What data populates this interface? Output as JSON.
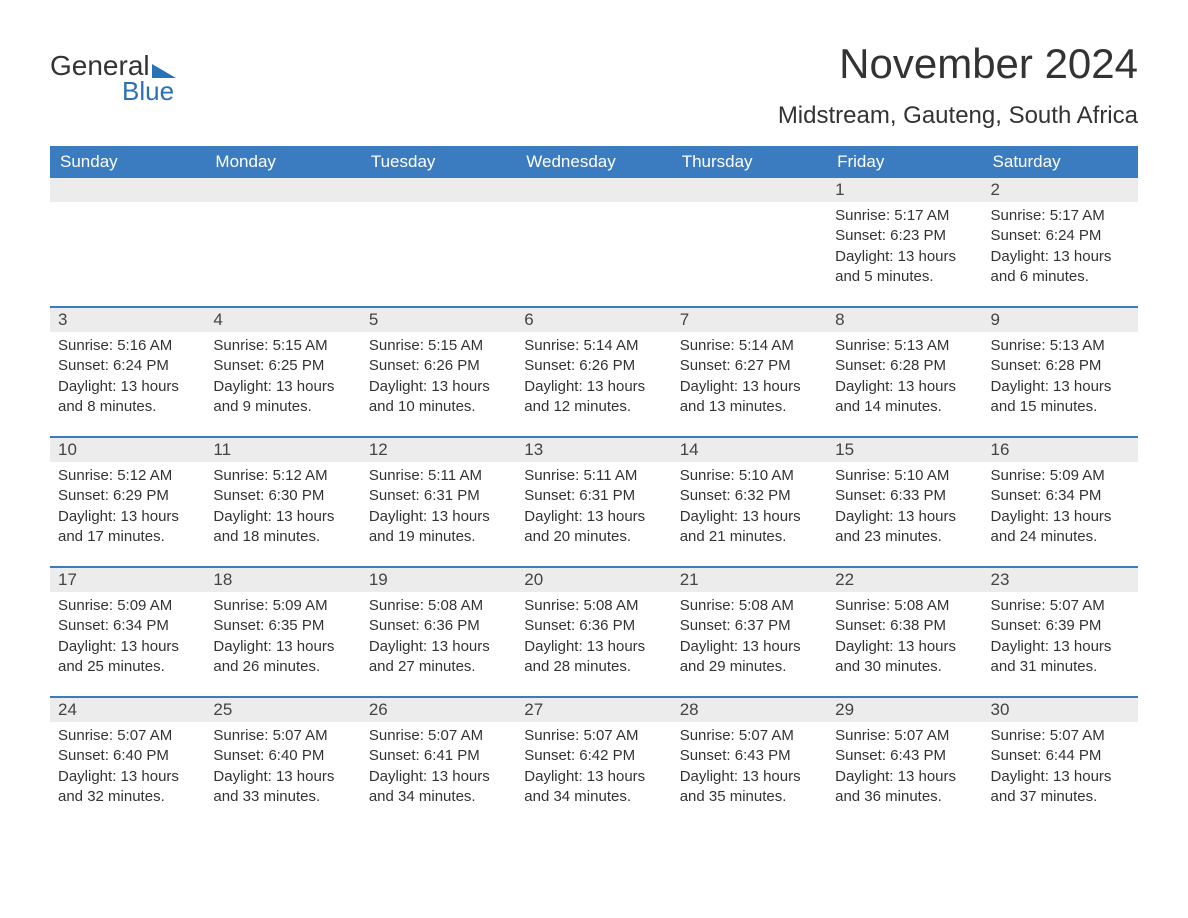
{
  "logo": {
    "text1": "General",
    "text2": "Blue"
  },
  "title": "November 2024",
  "location": "Midstream, Gauteng, South Africa",
  "colors": {
    "header_bg": "#3b7bbf",
    "header_text": "#ffffff",
    "daynum_bg": "#ececec",
    "row_border": "#3b7bbf",
    "logo_accent": "#2a72b5",
    "body_text": "#333333",
    "background": "#ffffff"
  },
  "typography": {
    "title_fontsize": 42,
    "location_fontsize": 24,
    "dayheader_fontsize": 17,
    "daynum_fontsize": 17,
    "body_fontsize": 15,
    "font_family": "Arial"
  },
  "calendar": {
    "type": "table",
    "columns": [
      "Sunday",
      "Monday",
      "Tuesday",
      "Wednesday",
      "Thursday",
      "Friday",
      "Saturday"
    ],
    "weeks": [
      [
        {
          "day": "",
          "sunrise": "",
          "sunset": "",
          "daylight": ""
        },
        {
          "day": "",
          "sunrise": "",
          "sunset": "",
          "daylight": ""
        },
        {
          "day": "",
          "sunrise": "",
          "sunset": "",
          "daylight": ""
        },
        {
          "day": "",
          "sunrise": "",
          "sunset": "",
          "daylight": ""
        },
        {
          "day": "",
          "sunrise": "",
          "sunset": "",
          "daylight": ""
        },
        {
          "day": "1",
          "sunrise": "Sunrise: 5:17 AM",
          "sunset": "Sunset: 6:23 PM",
          "daylight": "Daylight: 13 hours and 5 minutes."
        },
        {
          "day": "2",
          "sunrise": "Sunrise: 5:17 AM",
          "sunset": "Sunset: 6:24 PM",
          "daylight": "Daylight: 13 hours and 6 minutes."
        }
      ],
      [
        {
          "day": "3",
          "sunrise": "Sunrise: 5:16 AM",
          "sunset": "Sunset: 6:24 PM",
          "daylight": "Daylight: 13 hours and 8 minutes."
        },
        {
          "day": "4",
          "sunrise": "Sunrise: 5:15 AM",
          "sunset": "Sunset: 6:25 PM",
          "daylight": "Daylight: 13 hours and 9 minutes."
        },
        {
          "day": "5",
          "sunrise": "Sunrise: 5:15 AM",
          "sunset": "Sunset: 6:26 PM",
          "daylight": "Daylight: 13 hours and 10 minutes."
        },
        {
          "day": "6",
          "sunrise": "Sunrise: 5:14 AM",
          "sunset": "Sunset: 6:26 PM",
          "daylight": "Daylight: 13 hours and 12 minutes."
        },
        {
          "day": "7",
          "sunrise": "Sunrise: 5:14 AM",
          "sunset": "Sunset: 6:27 PM",
          "daylight": "Daylight: 13 hours and 13 minutes."
        },
        {
          "day": "8",
          "sunrise": "Sunrise: 5:13 AM",
          "sunset": "Sunset: 6:28 PM",
          "daylight": "Daylight: 13 hours and 14 minutes."
        },
        {
          "day": "9",
          "sunrise": "Sunrise: 5:13 AM",
          "sunset": "Sunset: 6:28 PM",
          "daylight": "Daylight: 13 hours and 15 minutes."
        }
      ],
      [
        {
          "day": "10",
          "sunrise": "Sunrise: 5:12 AM",
          "sunset": "Sunset: 6:29 PM",
          "daylight": "Daylight: 13 hours and 17 minutes."
        },
        {
          "day": "11",
          "sunrise": "Sunrise: 5:12 AM",
          "sunset": "Sunset: 6:30 PM",
          "daylight": "Daylight: 13 hours and 18 minutes."
        },
        {
          "day": "12",
          "sunrise": "Sunrise: 5:11 AM",
          "sunset": "Sunset: 6:31 PM",
          "daylight": "Daylight: 13 hours and 19 minutes."
        },
        {
          "day": "13",
          "sunrise": "Sunrise: 5:11 AM",
          "sunset": "Sunset: 6:31 PM",
          "daylight": "Daylight: 13 hours and 20 minutes."
        },
        {
          "day": "14",
          "sunrise": "Sunrise: 5:10 AM",
          "sunset": "Sunset: 6:32 PM",
          "daylight": "Daylight: 13 hours and 21 minutes."
        },
        {
          "day": "15",
          "sunrise": "Sunrise: 5:10 AM",
          "sunset": "Sunset: 6:33 PM",
          "daylight": "Daylight: 13 hours and 23 minutes."
        },
        {
          "day": "16",
          "sunrise": "Sunrise: 5:09 AM",
          "sunset": "Sunset: 6:34 PM",
          "daylight": "Daylight: 13 hours and 24 minutes."
        }
      ],
      [
        {
          "day": "17",
          "sunrise": "Sunrise: 5:09 AM",
          "sunset": "Sunset: 6:34 PM",
          "daylight": "Daylight: 13 hours and 25 minutes."
        },
        {
          "day": "18",
          "sunrise": "Sunrise: 5:09 AM",
          "sunset": "Sunset: 6:35 PM",
          "daylight": "Daylight: 13 hours and 26 minutes."
        },
        {
          "day": "19",
          "sunrise": "Sunrise: 5:08 AM",
          "sunset": "Sunset: 6:36 PM",
          "daylight": "Daylight: 13 hours and 27 minutes."
        },
        {
          "day": "20",
          "sunrise": "Sunrise: 5:08 AM",
          "sunset": "Sunset: 6:36 PM",
          "daylight": "Daylight: 13 hours and 28 minutes."
        },
        {
          "day": "21",
          "sunrise": "Sunrise: 5:08 AM",
          "sunset": "Sunset: 6:37 PM",
          "daylight": "Daylight: 13 hours and 29 minutes."
        },
        {
          "day": "22",
          "sunrise": "Sunrise: 5:08 AM",
          "sunset": "Sunset: 6:38 PM",
          "daylight": "Daylight: 13 hours and 30 minutes."
        },
        {
          "day": "23",
          "sunrise": "Sunrise: 5:07 AM",
          "sunset": "Sunset: 6:39 PM",
          "daylight": "Daylight: 13 hours and 31 minutes."
        }
      ],
      [
        {
          "day": "24",
          "sunrise": "Sunrise: 5:07 AM",
          "sunset": "Sunset: 6:40 PM",
          "daylight": "Daylight: 13 hours and 32 minutes."
        },
        {
          "day": "25",
          "sunrise": "Sunrise: 5:07 AM",
          "sunset": "Sunset: 6:40 PM",
          "daylight": "Daylight: 13 hours and 33 minutes."
        },
        {
          "day": "26",
          "sunrise": "Sunrise: 5:07 AM",
          "sunset": "Sunset: 6:41 PM",
          "daylight": "Daylight: 13 hours and 34 minutes."
        },
        {
          "day": "27",
          "sunrise": "Sunrise: 5:07 AM",
          "sunset": "Sunset: 6:42 PM",
          "daylight": "Daylight: 13 hours and 34 minutes."
        },
        {
          "day": "28",
          "sunrise": "Sunrise: 5:07 AM",
          "sunset": "Sunset: 6:43 PM",
          "daylight": "Daylight: 13 hours and 35 minutes."
        },
        {
          "day": "29",
          "sunrise": "Sunrise: 5:07 AM",
          "sunset": "Sunset: 6:43 PM",
          "daylight": "Daylight: 13 hours and 36 minutes."
        },
        {
          "day": "30",
          "sunrise": "Sunrise: 5:07 AM",
          "sunset": "Sunset: 6:44 PM",
          "daylight": "Daylight: 13 hours and 37 minutes."
        }
      ]
    ]
  }
}
